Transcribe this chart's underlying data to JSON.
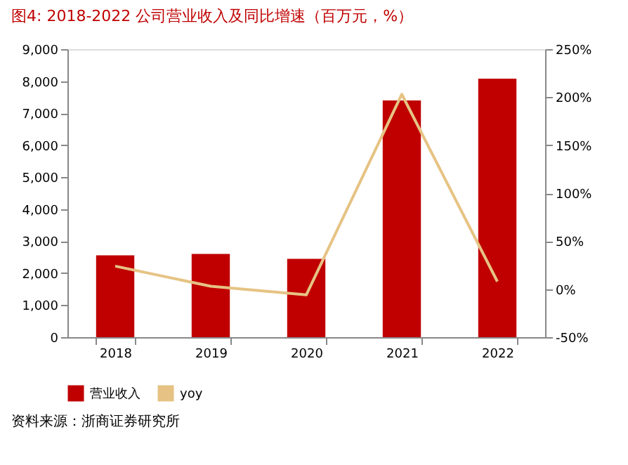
{
  "chart_data": {
    "type": "bar",
    "title": "图4:  2018-2022 公司营业收入及同比增速（百万元，%）",
    "categories": [
      "2018",
      "2019",
      "2020",
      "2021",
      "2022"
    ],
    "series": [
      {
        "name": "营业收入",
        "color": "#c00000",
        "values": [
          2560,
          2600,
          2450,
          7400,
          8080
        ]
      },
      {
        "name": "yoy",
        "type": "line",
        "axis": "y2",
        "color": "#e6c384",
        "values": [
          24,
          3,
          -6,
          203,
          8
        ]
      }
    ],
    "ylim": [
      0,
      9000
    ],
    "yticks": [
      0,
      {
        "value": 1000,
        "label": "1,000"
      },
      {
        "value": 2000,
        "label": "2,000"
      },
      {
        "value": 3000,
        "label": "3,000"
      },
      {
        "value": 4000,
        "label": "4,000"
      },
      {
        "value": 5000,
        "label": "5,000"
      },
      {
        "value": 6000,
        "label": "6,000"
      },
      {
        "value": 7000,
        "label": "7,000"
      },
      {
        "value": 8000,
        "label": "8,000"
      },
      {
        "value": 9000,
        "label": "9,000"
      }
    ],
    "y2lim": [
      -50,
      250
    ],
    "y2ticks": [
      {
        "value": -50,
        "label": "-50%"
      },
      {
        "value": 0,
        "label": "0%"
      },
      {
        "value": 50,
        "label": "50%"
      },
      {
        "value": 100,
        "label": "100%"
      },
      {
        "value": 150,
        "label": "150%"
      },
      {
        "value": 200,
        "label": "200%"
      },
      {
        "value": 250,
        "label": "250%"
      }
    ],
    "grid": false,
    "legend": "bottom",
    "marker": "none",
    "annotations": [
      "资料来源：浙商证券研究所"
    ]
  }
}
